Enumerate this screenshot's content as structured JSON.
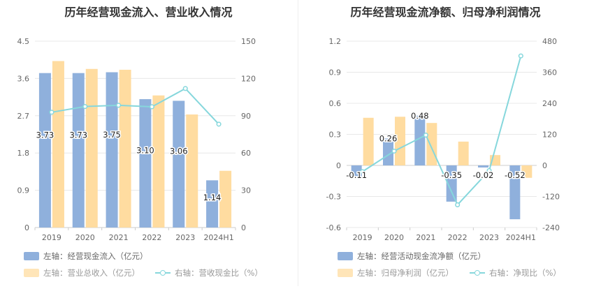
{
  "chart_data": [
    {
      "type": "bar",
      "title": "历年经营现金流入、营业收入情况",
      "categories": [
        "2019",
        "2020",
        "2021",
        "2022",
        "2023",
        "2024H1"
      ],
      "left_axis": {
        "min": 0,
        "max": 4.5,
        "ticks": [
          "0",
          "0.9",
          "1.8",
          "2.7",
          "3.6",
          "4.5"
        ]
      },
      "right_axis": {
        "min": 0,
        "max": 150,
        "ticks": [
          "0",
          "30",
          "60",
          "90",
          "120",
          "150"
        ]
      },
      "series": [
        {
          "name": "左轴：经营现金流入（亿元）",
          "axis": "left",
          "kind": "bar",
          "color": "#8fb0dc",
          "values": [
            3.73,
            3.73,
            3.75,
            3.1,
            3.06,
            1.14
          ],
          "labels": [
            "3.73",
            "3.73",
            "3.75",
            "3.10",
            "3.06",
            "1.14"
          ]
        },
        {
          "name": "左轴：营业总收入（亿元）",
          "axis": "left",
          "kind": "bar",
          "color": "#ffdca0",
          "values": [
            4.02,
            3.83,
            3.81,
            3.19,
            2.73,
            1.37
          ]
        },
        {
          "name": "右轴：营收现金比（%）",
          "axis": "right",
          "kind": "line",
          "color": "#86d7dc",
          "values": [
            92.8,
            97.4,
            98.4,
            97.2,
            111.9,
            83.2
          ]
        }
      ],
      "grid": true,
      "legend": "bottom-left"
    },
    {
      "type": "bar",
      "title": "历年经营现金流净额、归母净利润情况",
      "categories": [
        "2019",
        "2020",
        "2021",
        "2022",
        "2023",
        "2024H1"
      ],
      "left_axis": {
        "min": -0.6,
        "max": 1.2,
        "ticks": [
          "-0.6",
          "-0.3",
          "0",
          "0.3",
          "0.6",
          "0.9",
          "1.2"
        ]
      },
      "right_axis": {
        "min": -240,
        "max": 480,
        "ticks": [
          "-240",
          "-120",
          "0",
          "120",
          "240",
          "360",
          "480"
        ]
      },
      "series": [
        {
          "name": "左轴：经营活动现金流净额（亿元）",
          "axis": "left",
          "kind": "bar",
          "color": "#8fb0dc",
          "values": [
            -0.11,
            0.26,
            0.48,
            -0.35,
            -0.02,
            -0.52
          ],
          "labels": [
            "-0.11",
            "0.26",
            "0.48",
            "-0.35",
            "-0.02",
            "-0.52"
          ]
        },
        {
          "name": "左轴：归母净利润（亿元）",
          "axis": "left",
          "kind": "bar",
          "color": "#ffdca0",
          "values": [
            0.46,
            0.47,
            0.41,
            0.23,
            0.1,
            -0.12
          ]
        },
        {
          "name": "右轴：净现比（%）",
          "axis": "right",
          "kind": "line",
          "color": "#86d7dc",
          "values": [
            -23.9,
            55.3,
            117.1,
            -152.2,
            -20.0,
            423.0
          ]
        }
      ],
      "grid": true,
      "legend": "bottom-left"
    }
  ]
}
